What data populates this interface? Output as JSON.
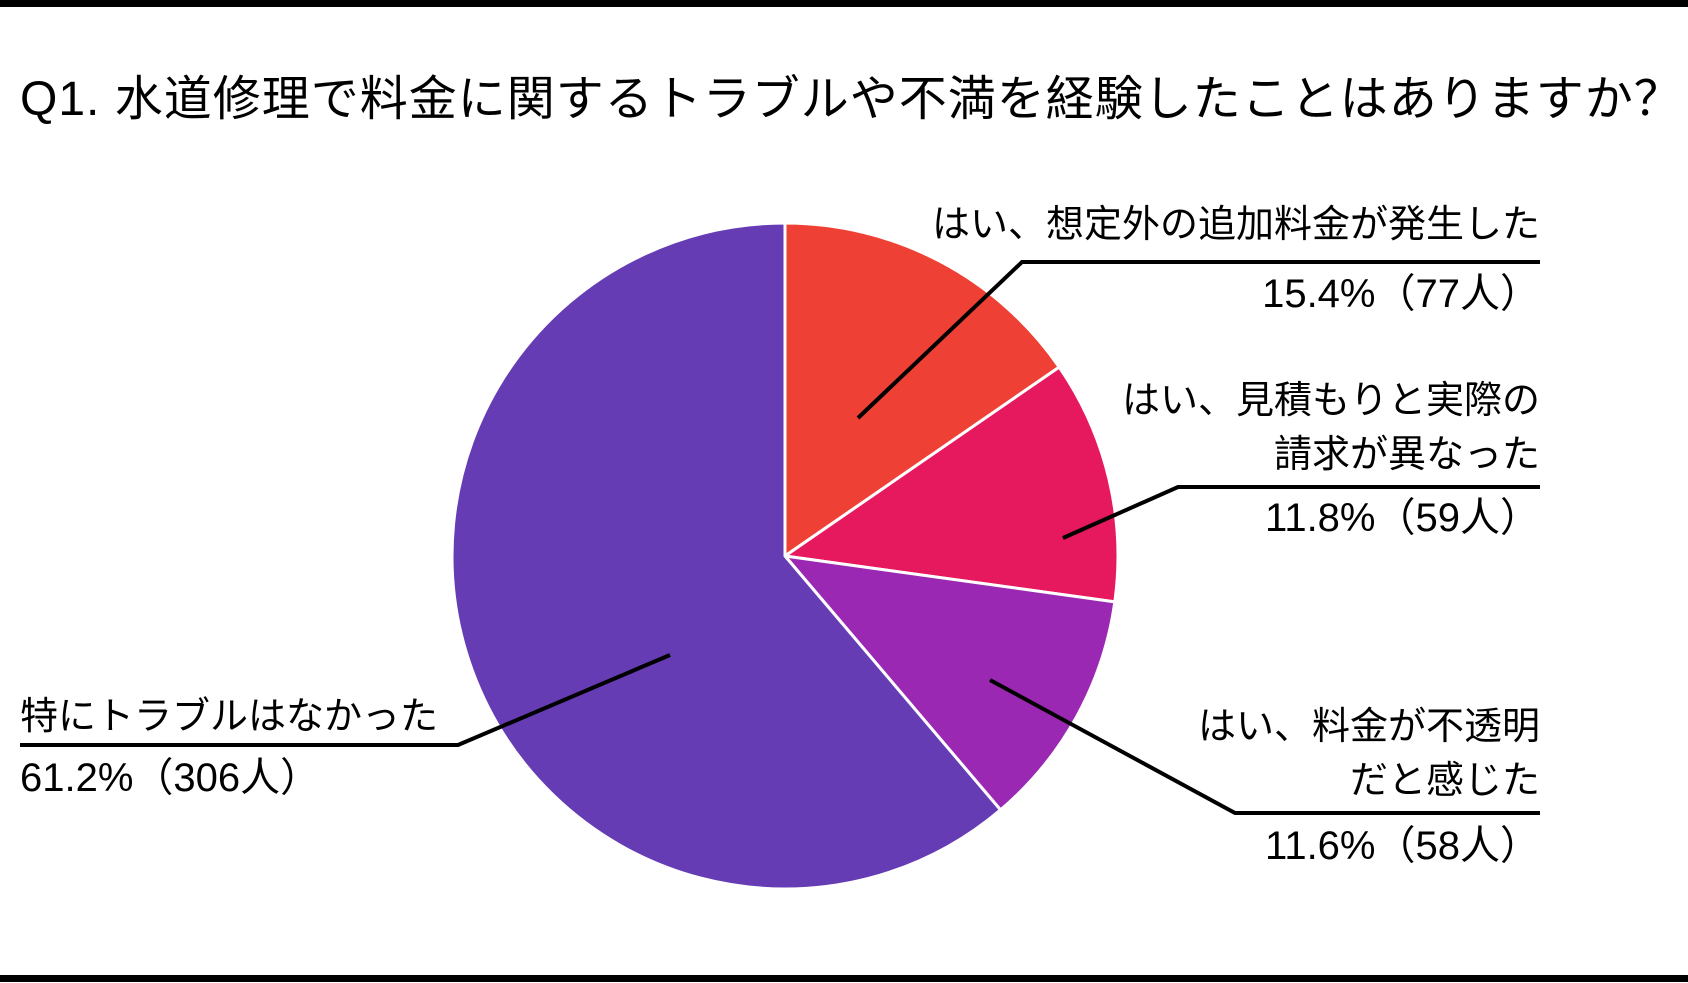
{
  "title": "Q1. 水道修理で料金に関するトラブルや不満を経験したことはありますか？",
  "chart_data": {
    "type": "pie",
    "title": "Q1. 水道修理で料金に関するトラブルや不満を経験したことはありますか？",
    "direction": "clockwise",
    "start_angle_deg": 0,
    "legend_position": "external-callouts",
    "unit": "人",
    "slices": [
      {
        "label": "はい、想定外の追加料金が発生した",
        "label_lines": [
          "はい、想定外の追加料金が発生した"
        ],
        "percent": 15.4,
        "count": 77,
        "value_label": "15.4%（77人）",
        "color": "#EE4035"
      },
      {
        "label": "はい、見積もりと実際の請求が異なった",
        "label_lines": [
          "はい、見積もりと実際の",
          "請求が異なった"
        ],
        "percent": 11.8,
        "count": 59,
        "value_label": "11.8%（59人）",
        "color": "#E6185E"
      },
      {
        "label": "はい、料金が不透明だと感じた",
        "label_lines": [
          "はい、料金が不透明",
          "だと感じた"
        ],
        "percent": 11.6,
        "count": 58,
        "value_label": "11.6%（58人）",
        "color": "#9B28B3"
      },
      {
        "label": "特にトラブルはなかった",
        "label_lines": [
          "特にトラブルはなかった"
        ],
        "percent": 61.2,
        "count": 306,
        "value_label": "61.2%（306人）",
        "color": "#663CB5"
      }
    ],
    "colors": {
      "leader_line": "#000000",
      "slice_stroke": "#ffffff",
      "text": "#000000",
      "background": "#ffffff",
      "border_bars": "#000000"
    }
  }
}
